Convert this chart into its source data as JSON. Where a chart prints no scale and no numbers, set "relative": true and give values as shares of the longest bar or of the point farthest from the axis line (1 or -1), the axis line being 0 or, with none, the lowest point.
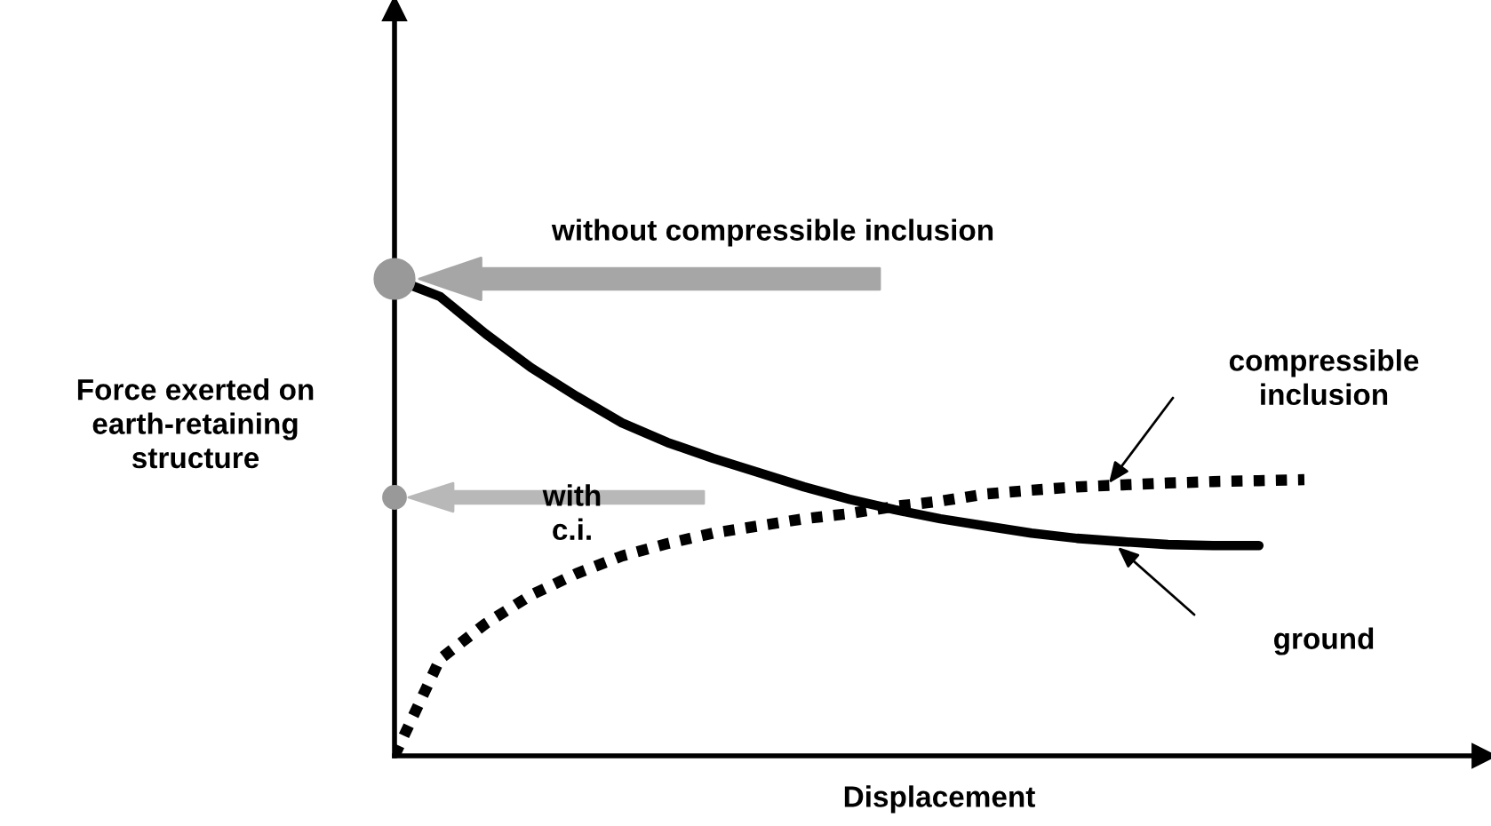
{
  "chart_data": {
    "type": "line",
    "relative": true,
    "xlabel": "Displacement",
    "ylabel": "Force exerted on\nearth-retaining\nstructure",
    "categories": [
      null,
      null,
      null,
      null,
      null,
      null,
      null,
      null,
      null,
      null,
      null,
      null,
      null,
      null,
      null,
      null,
      null,
      null,
      null,
      null,
      null
    ],
    "series": [
      {
        "color": "#000000",
        "line_style": "solid",
        "values": [
          1.0,
          0.963,
          0.885,
          0.814,
          0.754,
          0.698,
          0.657,
          0.624,
          0.594,
          0.564,
          0.538,
          0.516,
          0.497,
          0.482,
          0.467,
          0.456,
          0.449,
          0.443,
          0.441,
          0.441,
          null
        ]
      },
      {
        "color": "#000000",
        "line_style": "dotted",
        "values": [
          0.0,
          0.203,
          0.277,
          0.337,
          0.382,
          0.419,
          0.445,
          0.467,
          0.482,
          0.497,
          0.508,
          0.523,
          0.534,
          0.549,
          0.557,
          0.564,
          0.568,
          0.572,
          0.575,
          0.577,
          0.579
        ]
      }
    ],
    "annotations": [
      "without compressible inclusion",
      "with\nc.i.",
      "compressible\ninclusion",
      "ground"
    ],
    "legend": false
  }
}
